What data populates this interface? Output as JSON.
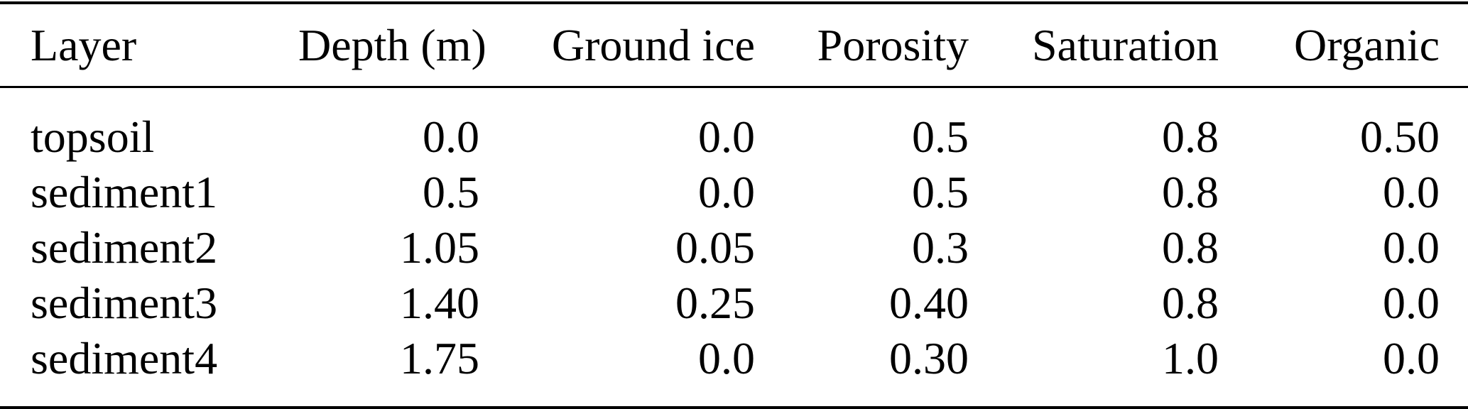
{
  "table": {
    "name": "soil-layer-properties",
    "columns": [
      {
        "label": "Layer",
        "align": "left"
      },
      {
        "label": "Depth (m)",
        "align": "right"
      },
      {
        "label": "Ground ice",
        "align": "right"
      },
      {
        "label": "Porosity",
        "align": "right"
      },
      {
        "label": "Saturation",
        "align": "right"
      },
      {
        "label": "Organic",
        "align": "right"
      }
    ],
    "rows": [
      [
        "topsoil",
        "0.0",
        "0.0",
        "0.5",
        "0.8",
        "0.50"
      ],
      [
        "sediment1",
        "0.5",
        "0.0",
        "0.5",
        "0.8",
        "0.0"
      ],
      [
        "sediment2",
        "1.05",
        "0.05",
        "0.3",
        "0.8",
        "0.0"
      ],
      [
        "sediment3",
        "1.40",
        "0.25",
        "0.40",
        "0.8",
        "0.0"
      ],
      [
        "sediment4",
        "1.75",
        "0.0",
        "0.30",
        "1.0",
        "0.0"
      ]
    ],
    "rules_color": "#000000",
    "text_color": "#000000",
    "background_color": "#ffffff"
  }
}
